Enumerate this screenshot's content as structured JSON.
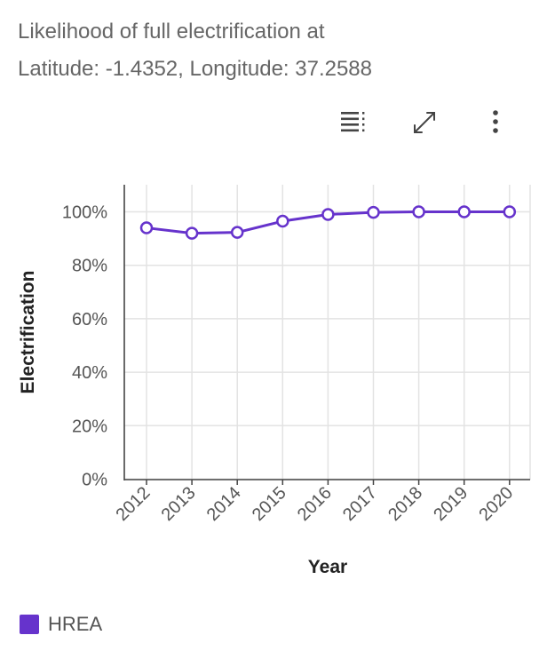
{
  "title": {
    "line1": "Likelihood of full electrification at",
    "line2": "Latitude: -1.4352, Longitude: 37.2588"
  },
  "toolbar": {
    "icons": [
      "data-table-icon",
      "fullscreen-icon",
      "more-options-icon"
    ]
  },
  "colors": {
    "series": "#6633cc",
    "grid": "#e3e3e3",
    "axis": "#444444",
    "title": "#666666"
  },
  "chart_data": {
    "type": "line",
    "title": "Likelihood of full electrification at Latitude: -1.4352, Longitude: 37.2588",
    "xlabel": "Year",
    "ylabel": "Electrification",
    "ylim": [
      0,
      100
    ],
    "y_ticks": [
      "0%",
      "20%",
      "40%",
      "60%",
      "80%",
      "100%"
    ],
    "y_tick_values": [
      0,
      20,
      40,
      60,
      80,
      100
    ],
    "categories": [
      "2012",
      "2013",
      "2014",
      "2015",
      "2016",
      "2017",
      "2018",
      "2019",
      "2020"
    ],
    "series": [
      {
        "name": "HREA",
        "color": "#6633cc",
        "values": [
          94,
          92,
          92.3,
          96.5,
          99,
          99.8,
          100,
          100,
          100
        ]
      }
    ],
    "grid": true,
    "legend": "bottom-left"
  }
}
